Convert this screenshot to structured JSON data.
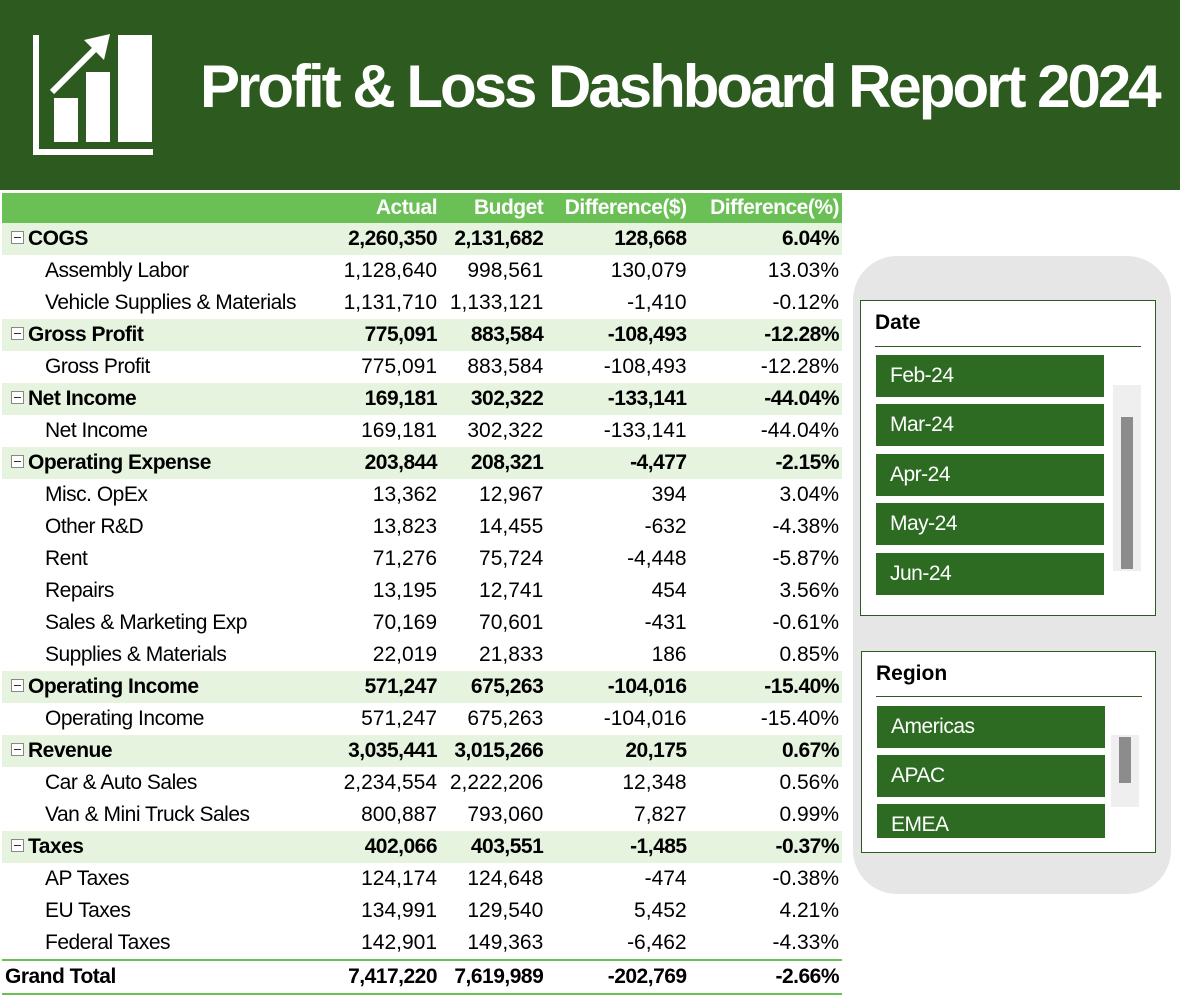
{
  "title": "Profit & Loss Dashboard Report 2024",
  "columns": [
    "Actual",
    "Budget",
    "Difference($)",
    "Difference(%)"
  ],
  "groups": [
    {
      "name": "COGS",
      "values": [
        "2,260,350",
        "2,131,682",
        "128,668",
        "6.04%"
      ],
      "items": [
        {
          "name": "Assembly Labor",
          "values": [
            "1,128,640",
            "998,561",
            "130,079",
            "13.03%"
          ]
        },
        {
          "name": "Vehicle Supplies & Materials",
          "values": [
            "1,131,710",
            "1,133,121",
            "-1,410",
            "-0.12%"
          ]
        }
      ]
    },
    {
      "name": "Gross Profit",
      "values": [
        "775,091",
        "883,584",
        "-108,493",
        "-12.28%"
      ],
      "items": [
        {
          "name": "Gross Profit",
          "values": [
            "775,091",
            "883,584",
            "-108,493",
            "-12.28%"
          ]
        }
      ]
    },
    {
      "name": "Net Income",
      "values": [
        "169,181",
        "302,322",
        "-133,141",
        "-44.04%"
      ],
      "items": [
        {
          "name": "Net Income",
          "values": [
            "169,181",
            "302,322",
            "-133,141",
            "-44.04%"
          ]
        }
      ]
    },
    {
      "name": "Operating Expense",
      "values": [
        "203,844",
        "208,321",
        "-4,477",
        "-2.15%"
      ],
      "items": [
        {
          "name": "Misc. OpEx",
          "values": [
            "13,362",
            "12,967",
            "394",
            "3.04%"
          ]
        },
        {
          "name": "Other R&D",
          "values": [
            "13,823",
            "14,455",
            "-632",
            "-4.38%"
          ]
        },
        {
          "name": "Rent",
          "values": [
            "71,276",
            "75,724",
            "-4,448",
            "-5.87%"
          ]
        },
        {
          "name": "Repairs",
          "values": [
            "13,195",
            "12,741",
            "454",
            "3.56%"
          ]
        },
        {
          "name": "Sales & Marketing Exp",
          "values": [
            "70,169",
            "70,601",
            "-431",
            "-0.61%"
          ]
        },
        {
          "name": "Supplies & Materials",
          "values": [
            "22,019",
            "21,833",
            "186",
            "0.85%"
          ]
        }
      ]
    },
    {
      "name": "Operating Income",
      "values": [
        "571,247",
        "675,263",
        "-104,016",
        "-15.40%"
      ],
      "items": [
        {
          "name": "Operating Income",
          "values": [
            "571,247",
            "675,263",
            "-104,016",
            "-15.40%"
          ]
        }
      ]
    },
    {
      "name": "Revenue",
      "values": [
        "3,035,441",
        "3,015,266",
        "20,175",
        "0.67%"
      ],
      "items": [
        {
          "name": "Car & Auto Sales",
          "values": [
            "2,234,554",
            "2,222,206",
            "12,348",
            "0.56%"
          ]
        },
        {
          "name": "Van & Mini Truck Sales",
          "values": [
            "800,887",
            "793,060",
            "7,827",
            "0.99%"
          ]
        }
      ]
    },
    {
      "name": "Taxes",
      "values": [
        "402,066",
        "403,551",
        "-1,485",
        "-0.37%"
      ],
      "items": [
        {
          "name": "AP Taxes",
          "values": [
            "124,174",
            "124,648",
            "-474",
            "-0.38%"
          ]
        },
        {
          "name": "EU Taxes",
          "values": [
            "134,991",
            "129,540",
            "5,452",
            "4.21%"
          ]
        },
        {
          "name": "Federal Taxes",
          "values": [
            "142,901",
            "149,363",
            "-6,462",
            "-4.33%"
          ]
        }
      ]
    }
  ],
  "grand_total": {
    "name": "Grand Total",
    "values": [
      "7,417,220",
      "7,619,989",
      "-202,769",
      "-2.66%"
    ]
  },
  "slicers": {
    "date": {
      "title": "Date",
      "items": [
        "Feb-24",
        "Mar-24",
        "Apr-24",
        "May-24",
        "Jun-24"
      ]
    },
    "region": {
      "title": "Region",
      "items": [
        "Americas",
        "APAC",
        "EMEA"
      ]
    }
  },
  "colors": {
    "header": "#2d5a1e",
    "column_header": "#6abf55",
    "group_row": "#e6f3df",
    "slicer_item": "#2d6b22"
  },
  "icons": {
    "logo": "bar-chart-trend-icon",
    "row_toggle": "collapse-minus-icon"
  }
}
